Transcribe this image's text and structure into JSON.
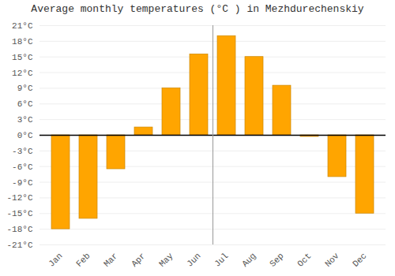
{
  "chart_data": {
    "type": "bar",
    "title": "Average monthly temperatures (°C ) in Mezhdurechenskiy",
    "categories": [
      "Jan",
      "Feb",
      "Mar",
      "Apr",
      "May",
      "Jun",
      "Jul",
      "Aug",
      "Sep",
      "Oct",
      "Nov",
      "Dec"
    ],
    "values": [
      -18,
      -16,
      -6.5,
      1.5,
      9,
      15.5,
      19,
      15,
      9.5,
      -0.3,
      -8,
      -15
    ],
    "color": "#FFA500",
    "ylim": [
      -21,
      21
    ],
    "yticks": [
      {
        "value": -21,
        "label": "-21°C"
      },
      {
        "value": -18,
        "label": "-18°C"
      },
      {
        "value": -15,
        "label": "-15°C"
      },
      {
        "value": -12,
        "label": "-12°C"
      },
      {
        "value": -9,
        "label": "-9°C"
      },
      {
        "value": -6,
        "label": "-6°C"
      },
      {
        "value": -3,
        "label": "-3°C"
      },
      {
        "value": 0,
        "label": "0°C"
      },
      {
        "value": 3,
        "label": "3°C"
      },
      {
        "value": 6,
        "label": "6°C"
      },
      {
        "value": 9,
        "label": "9°C"
      },
      {
        "value": 12,
        "label": "12°C"
      },
      {
        "value": 15,
        "label": "15°C"
      },
      {
        "value": 18,
        "label": "18°C"
      },
      {
        "value": 21,
        "label": "21°C"
      }
    ],
    "grid": true
  }
}
